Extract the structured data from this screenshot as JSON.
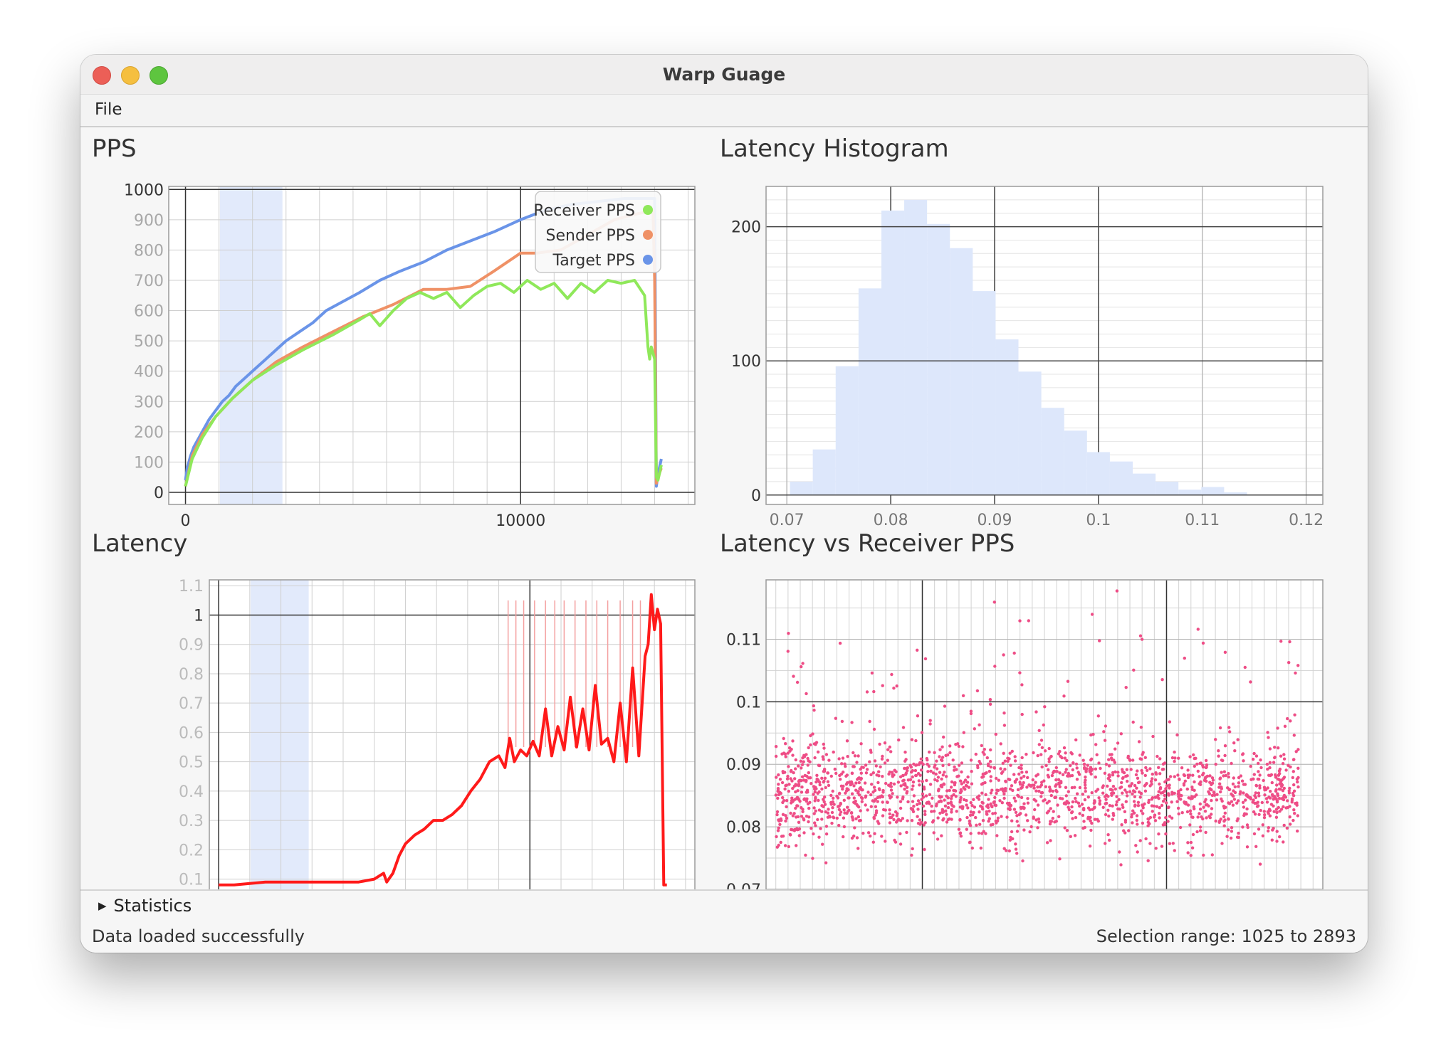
{
  "window": {
    "title": "Warp Guage"
  },
  "menu": {
    "file": "File"
  },
  "statistics": {
    "label": "Statistics"
  },
  "status": {
    "left": "Data loaded successfully",
    "right": "Selection range: 1025 to 2893"
  },
  "colors": {
    "receiver": "#8fe85a",
    "sender": "#ef9166",
    "target": "#6a94e8",
    "latency": "#ff1a1a",
    "scatter": "#ee4d86",
    "histogram": "#dde7fb",
    "selection": "#e2eafb"
  },
  "chart_data": [
    {
      "id": "pps",
      "type": "line",
      "title": "PPS",
      "xlim": [
        -500,
        15200
      ],
      "ylim": [
        -40,
        1010
      ],
      "xticks": [
        {
          "v": 0,
          "label": "0"
        },
        {
          "v": 10000,
          "label": "10000"
        }
      ],
      "yticks": [
        {
          "v": 0,
          "label": "0"
        },
        {
          "v": 100,
          "label": "100"
        },
        {
          "v": 200,
          "label": "200"
        },
        {
          "v": 300,
          "label": "300"
        },
        {
          "v": 400,
          "label": "400"
        },
        {
          "v": 500,
          "label": "500"
        },
        {
          "v": 600,
          "label": "600"
        },
        {
          "v": 700,
          "label": "700"
        },
        {
          "v": 800,
          "label": "800"
        },
        {
          "v": 900,
          "label": "900"
        },
        {
          "v": 1000,
          "label": "1000"
        }
      ],
      "selection": [
        1025,
        2893
      ],
      "legend": {
        "position": "top-right",
        "entries": [
          "Receiver PPS",
          "Sender PPS",
          "Target PPS"
        ]
      },
      "series": [
        {
          "name": "Target PPS",
          "color": "#6a94e8",
          "x": [
            0,
            50,
            150,
            250,
            400,
            550,
            700,
            900,
            1100,
            1300,
            1500,
            1800,
            2100,
            2400,
            2700,
            3000,
            3400,
            3800,
            4200,
            4700,
            5200,
            5800,
            6400,
            7100,
            7800,
            8500,
            9200,
            10000,
            10700,
            11500,
            12300,
            13100,
            13600,
            14000,
            14050,
            14100,
            14200
          ],
          "y": [
            40,
            80,
            120,
            150,
            180,
            210,
            240,
            270,
            300,
            320,
            350,
            380,
            410,
            440,
            470,
            500,
            530,
            560,
            600,
            630,
            660,
            700,
            730,
            760,
            800,
            830,
            860,
            900,
            930,
            950,
            960,
            970,
            970,
            970,
            20,
            60,
            110
          ]
        },
        {
          "name": "Sender PPS",
          "color": "#ef9166",
          "x": [
            0,
            200,
            500,
            900,
            1400,
            2000,
            2700,
            3500,
            4400,
            5300,
            6200,
            7100,
            7800,
            8500,
            9200,
            10000,
            10500,
            11200,
            12000,
            12800,
            13500,
            13950,
            14000,
            14050,
            14100,
            14200
          ],
          "y": [
            20,
            120,
            190,
            250,
            310,
            370,
            430,
            480,
            530,
            580,
            620,
            670,
            670,
            680,
            730,
            790,
            790,
            800,
            850,
            900,
            920,
            930,
            700,
            30,
            50,
            80
          ]
        },
        {
          "name": "Receiver PPS",
          "color": "#8fe85a",
          "x": [
            0,
            200,
            500,
            900,
            1400,
            2000,
            2700,
            3500,
            4400,
            5200,
            5500,
            5800,
            6200,
            6600,
            7000,
            7400,
            7800,
            8200,
            8600,
            9000,
            9400,
            9800,
            10200,
            10600,
            11000,
            11400,
            11800,
            12200,
            12600,
            13000,
            13400,
            13700,
            13800,
            13850,
            13900,
            13950,
            14000,
            14050,
            14100,
            14200
          ],
          "y": [
            20,
            110,
            180,
            250,
            310,
            370,
            420,
            470,
            520,
            570,
            590,
            550,
            600,
            640,
            660,
            640,
            660,
            610,
            650,
            680,
            690,
            660,
            700,
            670,
            690,
            640,
            690,
            660,
            700,
            690,
            700,
            650,
            480,
            440,
            480,
            460,
            440,
            50,
            40,
            90
          ]
        }
      ]
    },
    {
      "id": "histogram",
      "type": "bar",
      "title": "Latency Histogram",
      "xlim": [
        0.068,
        0.1216
      ],
      "ylim": [
        -7,
        230
      ],
      "xticks": [
        {
          "v": 0.07,
          "label": "0.07"
        },
        {
          "v": 0.08,
          "label": "0.08"
        },
        {
          "v": 0.09,
          "label": "0.09"
        },
        {
          "v": 0.1,
          "label": "0.1"
        },
        {
          "v": 0.11,
          "label": "0.11"
        },
        {
          "v": 0.12,
          "label": "0.12"
        }
      ],
      "yticks": [
        {
          "v": 0,
          "label": "0"
        },
        {
          "v": 100,
          "label": "100"
        },
        {
          "v": 200,
          "label": "200"
        }
      ],
      "bin_start": 0.0703,
      "bin_width": 0.0022,
      "values": [
        10,
        34,
        96,
        154,
        212,
        220,
        202,
        184,
        152,
        116,
        92,
        65,
        48,
        32,
        25,
        16,
        10,
        4,
        6,
        2
      ]
    },
    {
      "id": "latency",
      "type": "line",
      "title": "Latency",
      "xlim": [
        -300,
        15300
      ],
      "ylim": [
        0.065,
        1.12
      ],
      "xticks": [
        {
          "v": 0,
          "label": ""
        },
        {
          "v": 10000,
          "label": ""
        }
      ],
      "yticks": [
        {
          "v": 0.1,
          "label": "0.1"
        },
        {
          "v": 0.2,
          "label": "0.2"
        },
        {
          "v": 0.3,
          "label": "0.3"
        },
        {
          "v": 0.4,
          "label": "0.4"
        },
        {
          "v": 0.5,
          "label": "0.5"
        },
        {
          "v": 0.6,
          "label": "0.6"
        },
        {
          "v": 0.7,
          "label": "0.7"
        },
        {
          "v": 0.8,
          "label": "0.8"
        },
        {
          "v": 0.9,
          "label": "0.9"
        },
        {
          "v": 1,
          "label": "1"
        },
        {
          "v": 1.1,
          "label": "1.1"
        }
      ],
      "selection": [
        1025,
        2893
      ],
      "series": [
        {
          "name": "",
          "color": "#ff1a1a",
          "x": [
            0,
            500,
            1000,
            1500,
            2000,
            2500,
            3000,
            3500,
            4000,
            4500,
            5000,
            5300,
            5400,
            5600,
            5800,
            6000,
            6300,
            6600,
            6900,
            7200,
            7500,
            7800,
            8100,
            8400,
            8700,
            9000,
            9200,
            9350,
            9500,
            9700,
            9900,
            10100,
            10300,
            10500,
            10700,
            10900,
            11100,
            11300,
            11500,
            11700,
            11900,
            12100,
            12300,
            12500,
            12700,
            12900,
            13100,
            13300,
            13500,
            13700,
            13800,
            13900,
            14000,
            14100,
            14200,
            14300,
            14400
          ],
          "y": [
            0.08,
            0.08,
            0.085,
            0.09,
            0.09,
            0.09,
            0.09,
            0.09,
            0.09,
            0.09,
            0.1,
            0.12,
            0.09,
            0.12,
            0.18,
            0.22,
            0.25,
            0.27,
            0.3,
            0.3,
            0.32,
            0.35,
            0.4,
            0.44,
            0.5,
            0.52,
            0.48,
            0.58,
            0.5,
            0.54,
            0.52,
            0.57,
            0.52,
            0.68,
            0.52,
            0.62,
            0.54,
            0.72,
            0.55,
            0.68,
            0.54,
            0.76,
            0.56,
            0.58,
            0.5,
            0.7,
            0.5,
            0.82,
            0.52,
            0.86,
            0.9,
            1.07,
            0.95,
            1.02,
            0.97,
            0.08,
            0.08
          ]
        }
      ]
    },
    {
      "id": "latency-vs-pps",
      "type": "scatter",
      "title": "Latency vs Receiver PPS",
      "xlim": [
        -70,
        1070
      ],
      "ylim": [
        0.07,
        0.1195
      ],
      "xticks": [
        {
          "v": 0,
          "label": ""
        },
        {
          "v": 250,
          "label": ""
        },
        {
          "v": 500,
          "label": ""
        },
        {
          "v": 750,
          "label": ""
        },
        {
          "v": 1000,
          "label": ""
        }
      ],
      "yticks": [
        {
          "v": 0.07,
          "label": "0.07"
        },
        {
          "v": 0.08,
          "label": "0.08"
        },
        {
          "v": 0.09,
          "label": "0.09"
        },
        {
          "v": 0.1,
          "label": "0.1"
        },
        {
          "v": 0.11,
          "label": "0.11"
        }
      ],
      "x_range": [
        -50,
        1020
      ],
      "y_mean": 0.0855,
      "y_spread": 0.0105,
      "point_count": 1900
    }
  ]
}
